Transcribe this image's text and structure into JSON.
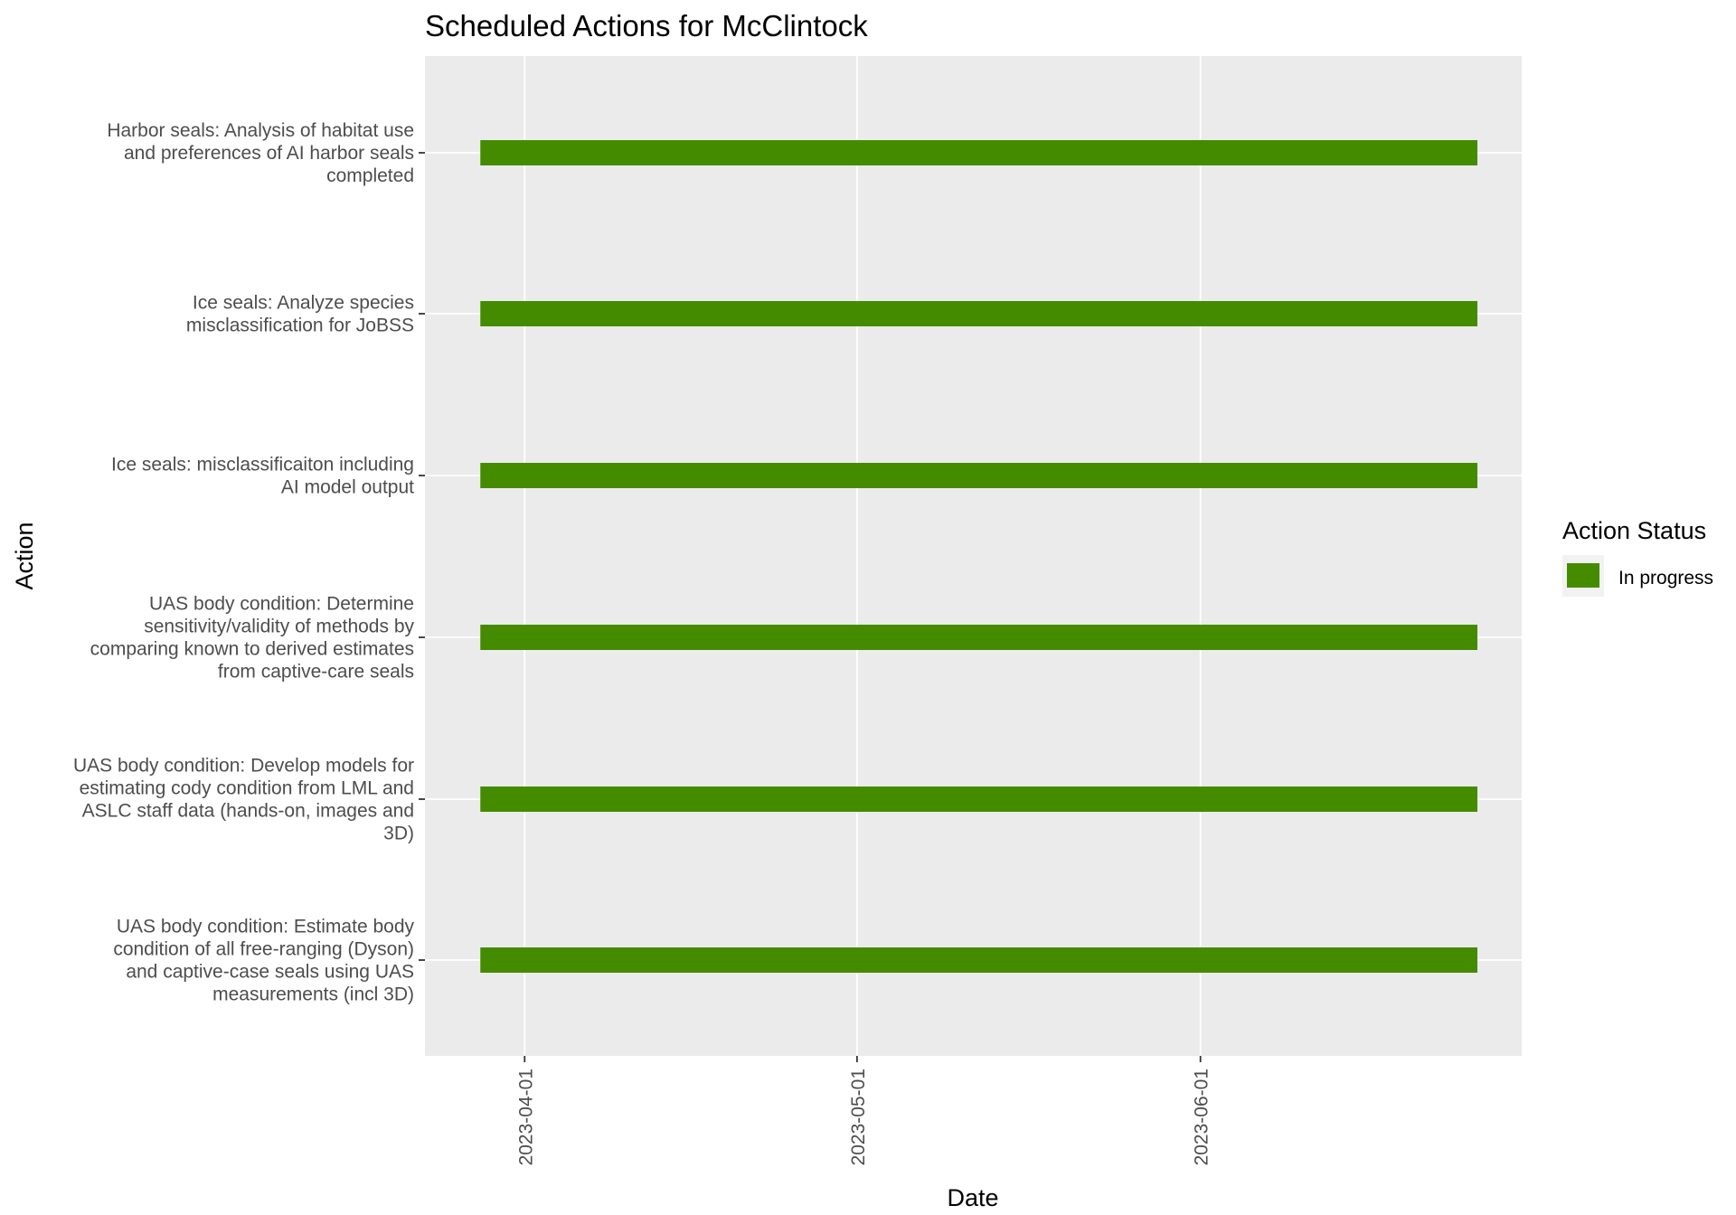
{
  "chart_data": {
    "type": "bar",
    "orientation": "horizontal-gantt",
    "title": "Scheduled Actions for McClintock",
    "xlabel": "Date",
    "ylabel": "Action",
    "xlim": [
      "2023-03-23",
      "2023-06-30"
    ],
    "x_ticks": [
      "2023-04-01",
      "2023-05-01",
      "2023-06-01"
    ],
    "grid": true,
    "legend": {
      "title": "Action Status",
      "position": "right",
      "entries": [
        {
          "label": "In progress",
          "color": "#458b00"
        }
      ]
    },
    "categories": [
      "Harbor seals: Analysis of habitat use and preferences of AI harbor seals completed",
      "Ice seals: Analyze species misclassification for JoBSS",
      "Ice seals: misclassificaiton including AI model output",
      "UAS body condition: Determine sensitivity/validity of methods by comparing known to derived estimates from captive-care seals",
      "UAS body condition: Develop models for estimating cody condition from LML and ASLC staff data (hands-on, images and 3D)",
      "UAS body condition: Estimate body condition of all free-ranging (Dyson) and captive-case seals using UAS measurements (incl 3D)"
    ],
    "category_label_lines": [
      [
        "Harbor seals: Analysis of habitat use",
        "and preferences of AI harbor seals",
        "completed"
      ],
      [
        "Ice seals: Analyze species",
        "misclassification for JoBSS"
      ],
      [
        "Ice seals: misclassificaiton including",
        "AI model output"
      ],
      [
        "UAS body condition: Determine",
        "sensitivity/validity of methods by",
        "comparing known to derived estimates",
        "from captive-care seals"
      ],
      [
        "UAS body condition: Develop models for",
        "estimating cody condition from LML and",
        "ASLC staff data (hands-on, images and",
        "3D)"
      ],
      [
        "UAS body condition: Estimate body",
        "condition of all free-ranging (Dyson)",
        "and captive-case seals using UAS",
        "measurements (incl 3D)"
      ]
    ],
    "series": [
      {
        "name": "In progress",
        "color": "#458b00",
        "start": [
          "2023-03-28",
          "2023-03-28",
          "2023-03-28",
          "2023-03-28",
          "2023-03-28",
          "2023-03-28"
        ],
        "end": [
          "2023-06-26",
          "2023-06-26",
          "2023-06-26",
          "2023-06-26",
          "2023-06-26",
          "2023-06-26"
        ]
      }
    ],
    "colors": {
      "panel": "#ebebeb",
      "grid": "#ffffff",
      "text": "#4d4d4d"
    }
  }
}
